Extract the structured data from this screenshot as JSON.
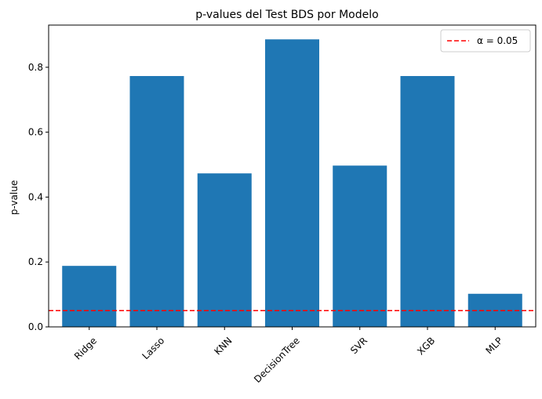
{
  "chart_data": {
    "type": "bar",
    "title": "p-values del Test BDS por Modelo",
    "xlabel": "",
    "ylabel": "p-value",
    "categories": [
      "Ridge",
      "Lasso",
      "KNN",
      "DecisionTree",
      "SVR",
      "XGB",
      "MLP"
    ],
    "values": [
      0.188,
      0.773,
      0.473,
      0.886,
      0.497,
      0.773,
      0.102
    ],
    "ylim": [
      0,
      0.93
    ],
    "yticks": [
      "0.0",
      "0.2",
      "0.4",
      "0.6",
      "0.8"
    ],
    "bar_color": "#1f77b4",
    "reference_line": {
      "value": 0.05,
      "label": "α = 0.05",
      "color": "#ff0000",
      "style": "dashed"
    },
    "legend_position": "top-right",
    "grid": false
  }
}
